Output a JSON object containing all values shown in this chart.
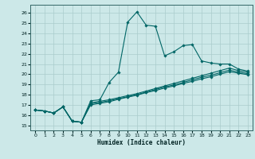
{
  "xlabel": "Humidex (Indice chaleur)",
  "bg_color": "#cce8e8",
  "grid_color": "#aacccc",
  "line_color": "#006666",
  "xlim": [
    -0.5,
    23.5
  ],
  "ylim": [
    14.5,
    26.8
  ],
  "xticks": [
    0,
    1,
    2,
    3,
    4,
    5,
    6,
    7,
    8,
    9,
    10,
    11,
    12,
    13,
    14,
    15,
    16,
    17,
    18,
    19,
    20,
    21,
    22,
    23
  ],
  "yticks": [
    15,
    16,
    17,
    18,
    19,
    20,
    21,
    22,
    23,
    24,
    25,
    26
  ],
  "series": [
    {
      "x": [
        0,
        1,
        2,
        3,
        4,
        5,
        6,
        7,
        8,
        9,
        10,
        11,
        12,
        13,
        14,
        15,
        16,
        17,
        18,
        19,
        20,
        21,
        22,
        23
      ],
      "y": [
        16.5,
        16.4,
        16.2,
        16.8,
        15.4,
        15.3,
        17.4,
        17.5,
        19.2,
        20.2,
        25.1,
        26.1,
        24.8,
        24.7,
        21.8,
        22.2,
        22.8,
        22.9,
        21.3,
        21.1,
        21.0,
        21.0,
        20.5,
        20.3
      ]
    },
    {
      "x": [
        0,
        1,
        2,
        3,
        4,
        5,
        6,
        7,
        8,
        9,
        10,
        11,
        12,
        13,
        14,
        15,
        16,
        17,
        18,
        19,
        20,
        21,
        22,
        23
      ],
      "y": [
        16.5,
        16.4,
        16.2,
        16.8,
        15.4,
        15.3,
        17.2,
        17.35,
        17.5,
        17.7,
        17.9,
        18.1,
        18.35,
        18.6,
        18.85,
        19.1,
        19.35,
        19.6,
        19.85,
        20.1,
        20.35,
        20.6,
        20.35,
        20.2
      ]
    },
    {
      "x": [
        0,
        1,
        2,
        3,
        4,
        5,
        6,
        7,
        8,
        9,
        10,
        11,
        12,
        13,
        14,
        15,
        16,
        17,
        18,
        19,
        20,
        21,
        22,
        23
      ],
      "y": [
        16.5,
        16.4,
        16.2,
        16.8,
        15.4,
        15.3,
        17.0,
        17.15,
        17.3,
        17.55,
        17.75,
        17.95,
        18.2,
        18.4,
        18.65,
        18.85,
        19.1,
        19.3,
        19.55,
        19.75,
        20.0,
        20.25,
        20.1,
        19.95
      ]
    },
    {
      "x": [
        0,
        1,
        2,
        3,
        4,
        5,
        6,
        7,
        8,
        9,
        10,
        11,
        12,
        13,
        14,
        15,
        16,
        17,
        18,
        19,
        20,
        21,
        22,
        23
      ],
      "y": [
        16.5,
        16.4,
        16.2,
        16.8,
        15.4,
        15.3,
        17.1,
        17.25,
        17.4,
        17.6,
        17.8,
        18.0,
        18.25,
        18.5,
        18.75,
        18.95,
        19.2,
        19.45,
        19.7,
        19.9,
        20.15,
        20.4,
        20.2,
        20.05
      ]
    }
  ]
}
